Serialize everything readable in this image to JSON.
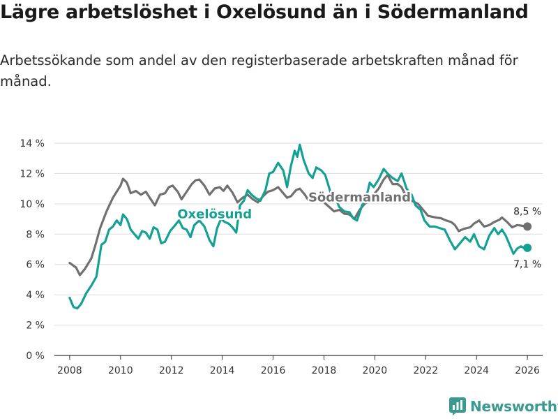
{
  "header": {
    "title": "Lägre arbetslöshet i Oxelösund än i Södermanland",
    "subtitle": "Arbetssökande som andel av den registerbaserade arbetskraften månad för månad."
  },
  "footer": {
    "brand": "Newsworthy"
  },
  "colors": {
    "oxelosund": "#14a194",
    "sodermanland": "#707070",
    "grid": "#dddddd",
    "brand": "#3a9a8f"
  },
  "chart_data": {
    "type": "line",
    "title": "Lägre arbetslöshet i Oxelösund än i Södermanland",
    "xlabel": "",
    "ylabel": "",
    "xlim": [
      2007.4,
      2026.6
    ],
    "ylim": [
      0,
      14
    ],
    "yticks": [
      0,
      2,
      4,
      6,
      8,
      10,
      12,
      14
    ],
    "ytick_labels": [
      "0 %",
      "2 %",
      "4 %",
      "6 %",
      "8 %",
      "10 %",
      "12 %",
      "14 %"
    ],
    "xticks": [
      2008,
      2010,
      2012,
      2014,
      2016,
      2018,
      2020,
      2022,
      2024,
      2026
    ],
    "xtick_labels": [
      "2008",
      "2010",
      "2012",
      "2014",
      "2016",
      "2018",
      "2020",
      "2022",
      "2024",
      "2026"
    ],
    "grid": true,
    "series": [
      {
        "name": "Södermanland",
        "label": "Södermanland",
        "end_label": "8,5 %",
        "points": [
          [
            2008.0,
            6.1
          ],
          [
            2008.25,
            5.8
          ],
          [
            2008.4,
            5.3
          ],
          [
            2008.6,
            5.7
          ],
          [
            2008.85,
            6.4
          ],
          [
            2009.0,
            7.2
          ],
          [
            2009.2,
            8.4
          ],
          [
            2009.45,
            9.5
          ],
          [
            2009.7,
            10.4
          ],
          [
            2009.85,
            10.8
          ],
          [
            2010.0,
            11.2
          ],
          [
            2010.1,
            11.65
          ],
          [
            2010.25,
            11.4
          ],
          [
            2010.4,
            10.7
          ],
          [
            2010.6,
            10.85
          ],
          [
            2010.8,
            10.6
          ],
          [
            2011.0,
            10.8
          ],
          [
            2011.15,
            10.4
          ],
          [
            2011.35,
            9.9
          ],
          [
            2011.55,
            10.6
          ],
          [
            2011.75,
            10.7
          ],
          [
            2011.9,
            11.1
          ],
          [
            2012.05,
            11.2
          ],
          [
            2012.25,
            10.8
          ],
          [
            2012.4,
            10.3
          ],
          [
            2012.6,
            10.8
          ],
          [
            2012.8,
            11.3
          ],
          [
            2012.95,
            11.55
          ],
          [
            2013.1,
            11.6
          ],
          [
            2013.3,
            11.2
          ],
          [
            2013.5,
            10.6
          ],
          [
            2013.7,
            11.0
          ],
          [
            2013.9,
            11.1
          ],
          [
            2014.05,
            10.85
          ],
          [
            2014.2,
            11.2
          ],
          [
            2014.4,
            10.75
          ],
          [
            2014.6,
            10.1
          ],
          [
            2014.8,
            10.4
          ],
          [
            2015.0,
            10.6
          ],
          [
            2015.2,
            10.3
          ],
          [
            2015.4,
            10.1
          ],
          [
            2015.6,
            10.5
          ],
          [
            2015.8,
            10.8
          ],
          [
            2016.0,
            10.9
          ],
          [
            2016.2,
            11.1
          ],
          [
            2016.4,
            10.7
          ],
          [
            2016.55,
            10.4
          ],
          [
            2016.7,
            10.5
          ],
          [
            2016.9,
            10.9
          ],
          [
            2017.05,
            11.0
          ],
          [
            2017.25,
            10.6
          ],
          [
            2017.4,
            10.2
          ],
          [
            2017.6,
            10.25
          ],
          [
            2017.8,
            10.3
          ],
          [
            2018.0,
            10.1
          ],
          [
            2018.2,
            9.8
          ],
          [
            2018.4,
            9.5
          ],
          [
            2018.6,
            9.6
          ],
          [
            2018.8,
            9.35
          ],
          [
            2019.0,
            9.3
          ],
          [
            2019.2,
            9.0
          ],
          [
            2019.4,
            9.6
          ],
          [
            2019.6,
            10.0
          ],
          [
            2019.85,
            10.3
          ],
          [
            2020.0,
            10.7
          ],
          [
            2020.15,
            11.0
          ],
          [
            2020.35,
            11.6
          ],
          [
            2020.5,
            11.9
          ],
          [
            2020.7,
            11.3
          ],
          [
            2020.9,
            11.3
          ],
          [
            2021.05,
            11.1
          ],
          [
            2021.2,
            10.6
          ],
          [
            2021.45,
            10.2
          ],
          [
            2021.7,
            10.0
          ],
          [
            2021.9,
            9.6
          ],
          [
            2022.1,
            9.2
          ],
          [
            2022.4,
            9.1
          ],
          [
            2022.6,
            9.05
          ],
          [
            2022.8,
            8.9
          ],
          [
            2023.0,
            8.8
          ],
          [
            2023.15,
            8.6
          ],
          [
            2023.3,
            8.2
          ],
          [
            2023.5,
            8.35
          ],
          [
            2023.75,
            8.45
          ],
          [
            2023.9,
            8.7
          ],
          [
            2024.1,
            8.9
          ],
          [
            2024.3,
            8.5
          ],
          [
            2024.5,
            8.6
          ],
          [
            2024.7,
            8.8
          ],
          [
            2024.9,
            8.95
          ],
          [
            2025.0,
            9.1
          ],
          [
            2025.2,
            8.8
          ],
          [
            2025.4,
            8.45
          ],
          [
            2025.6,
            8.6
          ],
          [
            2025.8,
            8.55
          ],
          [
            2025.9,
            8.5
          ],
          [
            2026.0,
            8.5
          ]
        ]
      },
      {
        "name": "Oxelösund",
        "label": "Oxelösund",
        "end_label": "7,1 %",
        "points": [
          [
            2008.0,
            3.8
          ],
          [
            2008.15,
            3.2
          ],
          [
            2008.3,
            3.1
          ],
          [
            2008.45,
            3.4
          ],
          [
            2008.65,
            4.1
          ],
          [
            2008.85,
            4.6
          ],
          [
            2009.05,
            5.2
          ],
          [
            2009.25,
            7.3
          ],
          [
            2009.4,
            7.5
          ],
          [
            2009.55,
            8.3
          ],
          [
            2009.7,
            8.5
          ],
          [
            2009.85,
            8.9
          ],
          [
            2010.0,
            8.6
          ],
          [
            2010.1,
            9.3
          ],
          [
            2010.25,
            9.0
          ],
          [
            2010.4,
            8.3
          ],
          [
            2010.55,
            8.0
          ],
          [
            2010.7,
            7.7
          ],
          [
            2010.85,
            8.2
          ],
          [
            2011.0,
            8.1
          ],
          [
            2011.15,
            7.7
          ],
          [
            2011.3,
            8.45
          ],
          [
            2011.45,
            8.3
          ],
          [
            2011.6,
            7.4
          ],
          [
            2011.75,
            7.5
          ],
          [
            2011.95,
            8.2
          ],
          [
            2012.15,
            8.6
          ],
          [
            2012.3,
            8.9
          ],
          [
            2012.45,
            8.4
          ],
          [
            2012.6,
            8.3
          ],
          [
            2012.75,
            7.8
          ],
          [
            2012.9,
            8.6
          ],
          [
            2013.1,
            8.9
          ],
          [
            2013.3,
            8.5
          ],
          [
            2013.5,
            7.6
          ],
          [
            2013.65,
            7.2
          ],
          [
            2013.8,
            8.4
          ],
          [
            2013.95,
            9.0
          ],
          [
            2014.1,
            8.8
          ],
          [
            2014.25,
            8.7
          ],
          [
            2014.4,
            8.45
          ],
          [
            2014.55,
            8.1
          ],
          [
            2014.7,
            9.9
          ],
          [
            2014.85,
            10.2
          ],
          [
            2015.0,
            10.9
          ],
          [
            2015.15,
            10.6
          ],
          [
            2015.3,
            10.4
          ],
          [
            2015.5,
            10.2
          ],
          [
            2015.7,
            10.9
          ],
          [
            2015.85,
            12.0
          ],
          [
            2016.0,
            12.1
          ],
          [
            2016.2,
            12.7
          ],
          [
            2016.4,
            12.2
          ],
          [
            2016.55,
            11.1
          ],
          [
            2016.7,
            12.5
          ],
          [
            2016.85,
            13.5
          ],
          [
            2016.95,
            13.1
          ],
          [
            2017.05,
            13.9
          ],
          [
            2017.2,
            12.9
          ],
          [
            2017.4,
            12.0
          ],
          [
            2017.55,
            11.7
          ],
          [
            2017.7,
            12.4
          ],
          [
            2017.9,
            12.2
          ],
          [
            2018.05,
            11.9
          ],
          [
            2018.25,
            10.8
          ],
          [
            2018.45,
            10.4
          ],
          [
            2018.6,
            9.8
          ],
          [
            2018.8,
            9.5
          ],
          [
            2019.0,
            9.45
          ],
          [
            2019.15,
            9.05
          ],
          [
            2019.3,
            8.9
          ],
          [
            2019.5,
            9.9
          ],
          [
            2019.65,
            10.3
          ],
          [
            2019.8,
            11.4
          ],
          [
            2019.95,
            11.1
          ],
          [
            2020.15,
            11.6
          ],
          [
            2020.35,
            12.3
          ],
          [
            2020.5,
            12.0
          ],
          [
            2020.7,
            11.7
          ],
          [
            2020.9,
            11.5
          ],
          [
            2021.05,
            12.0
          ],
          [
            2021.25,
            11.0
          ],
          [
            2021.45,
            10.6
          ],
          [
            2021.6,
            9.9
          ],
          [
            2021.8,
            9.6
          ],
          [
            2021.95,
            8.9
          ],
          [
            2022.15,
            8.5
          ],
          [
            2022.35,
            8.5
          ],
          [
            2022.55,
            8.4
          ],
          [
            2022.75,
            8.3
          ],
          [
            2022.95,
            7.6
          ],
          [
            2023.15,
            7.0
          ],
          [
            2023.35,
            7.4
          ],
          [
            2023.55,
            7.8
          ],
          [
            2023.75,
            7.5
          ],
          [
            2023.9,
            8.0
          ],
          [
            2024.1,
            7.2
          ],
          [
            2024.3,
            7.0
          ],
          [
            2024.5,
            7.9
          ],
          [
            2024.7,
            8.4
          ],
          [
            2024.85,
            8.0
          ],
          [
            2025.0,
            8.3
          ],
          [
            2025.15,
            7.9
          ],
          [
            2025.3,
            7.3
          ],
          [
            2025.45,
            6.7
          ],
          [
            2025.6,
            7.05
          ],
          [
            2025.75,
            7.2
          ],
          [
            2025.9,
            7.05
          ],
          [
            2026.0,
            7.1
          ]
        ]
      }
    ],
    "annotations": [
      {
        "text": "Oxelösund",
        "series": "Oxelösund",
        "x": 2013.7,
        "y": 9.05
      },
      {
        "text": "Södermanland",
        "series": "Södermanland",
        "x": 2019.4,
        "y": 10.15
      }
    ]
  }
}
